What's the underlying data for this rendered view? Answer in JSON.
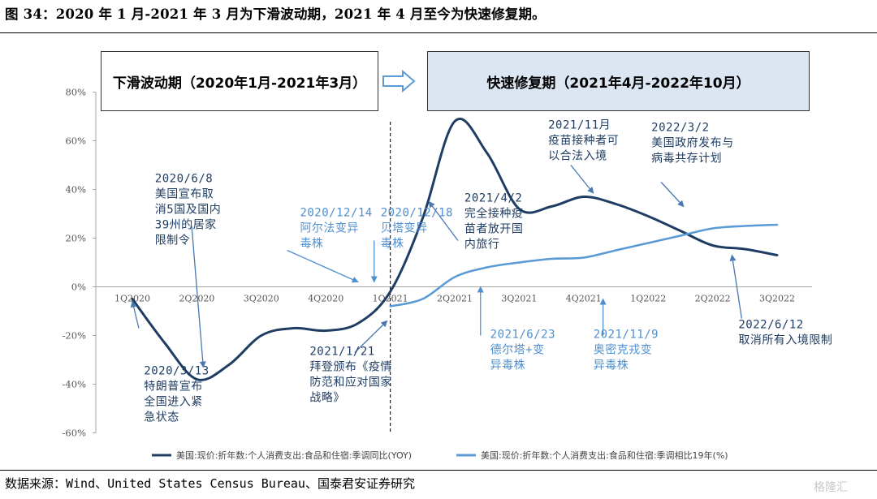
{
  "figure_title": "图 34：2020 年 1 月-2021 年 3 月为下滑波动期，2021 年 4 月至今为快速修复期。",
  "source_note": "数据来源：Wind、United States Census Bureau、国泰君安证券研究",
  "watermark": "格隆汇",
  "phase_boxes": {
    "left_label": "下滑波动期（2020年1月-2021年3月）",
    "right_label": "快速修复期（2021年4月-2022年10月）"
  },
  "colors": {
    "series_dark": "#1f3d63",
    "series_light": "#5b9bd5",
    "annotation_dark": "#1f3d63",
    "annotation_light": "#4f8fcf",
    "arrow_dark": "#4a78b0",
    "right_box_fill": "#dce6f2",
    "axis": "#a6a6a6",
    "tick_label": "#555555"
  },
  "chart_data": {
    "type": "line",
    "categories": [
      "1Q2020",
      "2Q2020",
      "3Q2020",
      "4Q2020",
      "1Q2021",
      "2Q2021",
      "3Q2021",
      "4Q2021",
      "1Q2022",
      "2Q2022",
      "3Q2022"
    ],
    "ylim": [
      -0.6,
      0.8
    ],
    "yticks": [
      -0.6,
      -0.4,
      -0.2,
      0,
      0.2,
      0.4,
      0.6,
      0.8
    ],
    "ytick_labels": [
      "-60%",
      "-40%",
      "-20%",
      "0%",
      "20%",
      "40%",
      "60%",
      "80%"
    ],
    "phase_divider_x": 4.0,
    "series": [
      {
        "name": "美国:现价:折年数:个人消费支出:食品和住宿:季调同比(YOY)",
        "color": "#1f3d63",
        "x": [
          0,
          0.5,
          1,
          1.5,
          2,
          2.5,
          3,
          3.5,
          4,
          4.5,
          5,
          5.5,
          6,
          6.5,
          7,
          7.5,
          8,
          8.5,
          9,
          9.5,
          10
        ],
        "y": [
          -0.05,
          -0.23,
          -0.38,
          -0.32,
          -0.2,
          -0.17,
          -0.18,
          -0.15,
          -0.02,
          0.28,
          0.68,
          0.55,
          0.32,
          0.33,
          0.37,
          0.34,
          0.29,
          0.23,
          0.17,
          0.155,
          0.13
        ]
      },
      {
        "name": "美国:现价:折年数:个人消费支出:食品和住宿:季调相比19年(%)",
        "color": "#5b9bd5",
        "x": [
          4,
          4.5,
          5,
          5.5,
          6,
          6.5,
          7,
          7.5,
          8,
          8.5,
          9,
          9.5,
          10
        ],
        "y": [
          -0.08,
          -0.05,
          0.04,
          0.08,
          0.1,
          0.115,
          0.12,
          0.15,
          0.18,
          0.21,
          0.24,
          0.25,
          0.255
        ]
      }
    ],
    "annotations": [
      {
        "id": "a1",
        "text": [
          "2020/3/13",
          "特朗普宣布",
          "全国进入紧",
          "急状态"
        ],
        "color": "dark",
        "tx": 0.18,
        "ty": -0.36,
        "ax": 0.1,
        "ay": -0.17,
        "hx": 0.0,
        "hy": -0.06
      },
      {
        "id": "a2",
        "text": [
          "2020/6/8",
          "美国宣布取",
          "消5国及国内",
          "39州的居家",
          "限制令"
        ],
        "color": "dark",
        "tx": 0.35,
        "ty": 0.43,
        "ax": 0.92,
        "ay": 0.25,
        "hx": 1.1,
        "hy": -0.33
      },
      {
        "id": "a3",
        "text": [
          "2020/12/14",
          "阿尔法变异",
          "毒株"
        ],
        "color": "light",
        "tx": 2.6,
        "ty": 0.29,
        "ax": 2.4,
        "ay": 0.15,
        "hx": 3.5,
        "hy": 0.02
      },
      {
        "id": "a4",
        "text": [
          "2020/12/18",
          "贝塔变异",
          "毒株"
        ],
        "color": "light",
        "tx": 3.85,
        "ty": 0.29,
        "ax": 3.75,
        "ay": 0.19,
        "hx": 3.75,
        "hy": 0.02
      },
      {
        "id": "a5",
        "text": [
          "2021/1/21",
          "拜登颁布《疫情",
          "防范和应对国家",
          "战略》"
        ],
        "color": "dark",
        "tx": 2.75,
        "ty": -0.28,
        "ax": 3.45,
        "ay": -0.27,
        "hx": 3.95,
        "hy": -0.14
      },
      {
        "id": "a6",
        "text": [
          "2021/4/2",
          "完全接种疫",
          "苗者放开国",
          "内旅行"
        ],
        "color": "dark",
        "tx": 5.15,
        "ty": 0.35,
        "ax": 5.05,
        "ay": 0.19,
        "hx": 4.6,
        "hy": 0.35
      },
      {
        "id": "a7",
        "text": [
          "2021/11月",
          "疫苗接种者可",
          "以合法入境"
        ],
        "color": "dark",
        "tx": 6.45,
        "ty": 0.65,
        "ax": 6.8,
        "ay": 0.5,
        "hx": 7.15,
        "hy": 0.385
      },
      {
        "id": "a8",
        "text": [
          "2022/3/2",
          "美国政府发布与",
          "病毒共存计划"
        ],
        "color": "dark",
        "tx": 8.05,
        "ty": 0.64,
        "ax": 8.2,
        "ay": 0.43,
        "hx": 8.55,
        "hy": 0.33
      },
      {
        "id": "a9",
        "text": [
          "2021/6/23",
          "德尔塔+变",
          "异毒株"
        ],
        "color": "light",
        "tx": 5.55,
        "ty": -0.21,
        "ax": 5.4,
        "ay": -0.2,
        "hx": 5.4,
        "hy": 0.0
      },
      {
        "id": "a10",
        "text": [
          "2021/11/9",
          "奥密克戎变",
          "异毒株"
        ],
        "color": "light",
        "tx": 7.15,
        "ty": -0.21,
        "ax": 7.3,
        "ay": -0.2,
        "hx": 7.3,
        "hy": -0.05
      },
      {
        "id": "a11",
        "text": [
          "2022/6/12",
          "取消所有入境限制"
        ],
        "color": "dark",
        "tx": 9.4,
        "ty": -0.17,
        "ax": 9.45,
        "ay": -0.13,
        "hx": 9.3,
        "hy": 0.13
      }
    ]
  }
}
